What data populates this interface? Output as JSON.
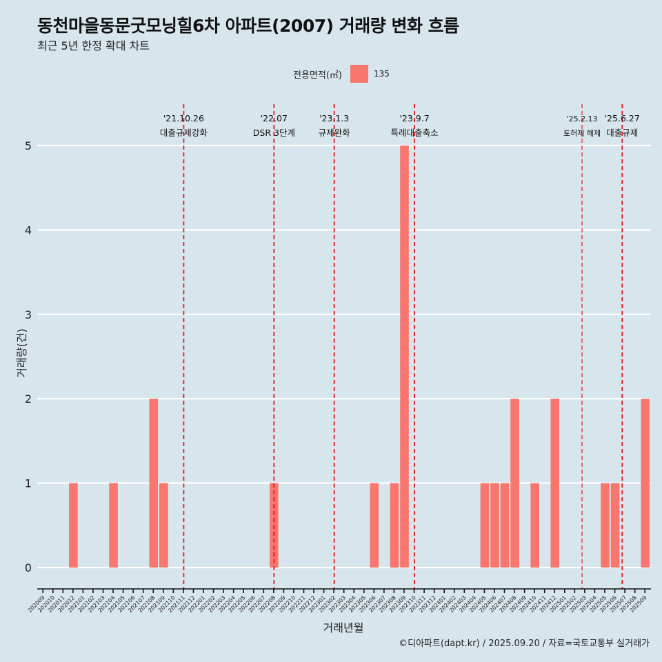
{
  "title": "동천마을동문굿모닝힐6차 아파트(2007) 거래량 변화 흐름",
  "subtitle": "최근 5년 한정 확대 차트",
  "legend": {
    "title": "전용면적(㎡)",
    "label": "135"
  },
  "caption": "©디아파트(dapt.kr) / 2025.09.20 / 자료=국토교통부 실거래가",
  "colors": {
    "bar": "#f8766d",
    "event": "#e41a1c",
    "background": "#d7e5ec",
    "grid": "#ffffff"
  },
  "chart_data": {
    "type": "bar",
    "title": "동천마을동문굿모닝힐6차 아파트(2007) 거래량 변화 흐름",
    "xlabel": "거래년월",
    "ylabel": "거래량(건)",
    "ylim": [
      0,
      5
    ],
    "yticks": [
      0,
      1,
      2,
      3,
      4,
      5
    ],
    "series_name": "135",
    "categories": [
      "202009",
      "202010",
      "202011",
      "202012",
      "202101",
      "202102",
      "202103",
      "202104",
      "202105",
      "202106",
      "202107",
      "202108",
      "202109",
      "202110",
      "202111",
      "202112",
      "202201",
      "202202",
      "202203",
      "202204",
      "202205",
      "202206",
      "202207",
      "202208",
      "202209",
      "202210",
      "202211",
      "202212",
      "202301",
      "202302",
      "202303",
      "202304",
      "202305",
      "202306",
      "202307",
      "202308",
      "202309",
      "202310",
      "202311",
      "202312",
      "202401",
      "202402",
      "202403",
      "202404",
      "202405",
      "202406",
      "202407",
      "202408",
      "202409",
      "202410",
      "202411",
      "202412",
      "202501",
      "202502",
      "202503",
      "202504",
      "202505",
      "202506",
      "202507",
      "202508",
      "202509"
    ],
    "values": [
      0,
      0,
      1,
      0,
      0,
      0,
      1,
      0,
      0,
      0,
      2,
      1,
      0,
      0,
      0,
      0,
      0,
      0,
      0,
      0,
      0,
      0,
      1,
      0,
      0,
      0,
      0,
      0,
      0,
      0,
      0,
      0,
      1,
      0,
      1,
      5,
      0,
      0,
      0,
      0,
      0,
      0,
      0,
      1,
      1,
      1,
      2,
      0,
      1,
      0,
      2,
      0,
      0,
      0,
      0,
      1,
      1,
      0,
      0,
      2,
      0
    ],
    "events": [
      {
        "date": "'21.10.26",
        "label": "대출규제강화",
        "x": 13.0
      },
      {
        "date": "'22.07",
        "label": "DSR 3단계",
        "x": 22.0
      },
      {
        "date": "'23.1.3",
        "label": "규제완화",
        "x": 28.0
      },
      {
        "date": "'23.9.7",
        "label": "특례대출축소",
        "x": 36.0
      },
      {
        "date": "'25.2.13",
        "label": "토허제 해제",
        "x": 52.7
      },
      {
        "date": "'25.6.27",
        "label": "대출규제",
        "x": 56.7
      }
    ]
  },
  "axis": {
    "xlabel": "거래년월",
    "ylabel": "거래량(건)"
  }
}
